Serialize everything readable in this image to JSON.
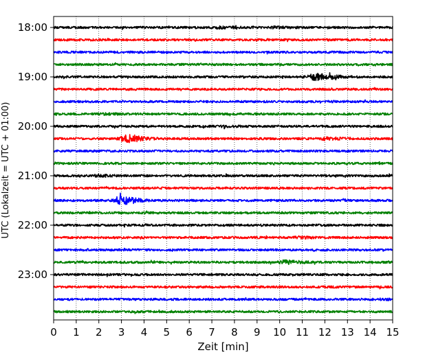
{
  "chart_data": {
    "type": "line",
    "title": "",
    "xlabel": "Zeit  [min]",
    "ylabel": "UTC (Lokalzeit = UTC + 01:00)",
    "xlim": [
      0,
      15
    ],
    "x_ticks": [
      0,
      1,
      2,
      3,
      4,
      5,
      6,
      7,
      8,
      9,
      10,
      11,
      12,
      13,
      14,
      15
    ],
    "y_tick_labels": [
      "18:00",
      "19:00",
      "20:00",
      "21:00",
      "22:00",
      "23:00"
    ],
    "grid": "vertical dotted lines at each minute",
    "color_cycle": [
      "#000000",
      "#ff0000",
      "#0000ff",
      "#008000"
    ],
    "traces": [
      {
        "start": "18:00",
        "color": "#000000",
        "events": [
          {
            "minute": 7.3,
            "amplitude": 1.6
          },
          {
            "minute": 9.8,
            "amplitude": 1.5
          }
        ]
      },
      {
        "start": "18:15",
        "color": "#ff0000",
        "events": []
      },
      {
        "start": "18:30",
        "color": "#0000ff",
        "events": []
      },
      {
        "start": "18:45",
        "color": "#008000",
        "events": []
      },
      {
        "start": "19:00",
        "color": "#000000",
        "events": [
          {
            "minute": 11.5,
            "amplitude": 3.5
          },
          {
            "minute": 12.3,
            "amplitude": 1.5
          }
        ]
      },
      {
        "start": "19:15",
        "color": "#ff0000",
        "events": []
      },
      {
        "start": "19:30",
        "color": "#0000ff",
        "events": []
      },
      {
        "start": "19:45",
        "color": "#008000",
        "events": [
          {
            "minute": 2.3,
            "amplitude": 1.4
          }
        ]
      },
      {
        "start": "20:00",
        "color": "#000000",
        "events": [
          {
            "minute": 7.5,
            "amplitude": 1.3
          }
        ]
      },
      {
        "start": "20:15",
        "color": "#ff0000",
        "events": [
          {
            "minute": 3.2,
            "amplitude": 4.0
          },
          {
            "minute": 12.0,
            "amplitude": 1.8
          }
        ]
      },
      {
        "start": "20:30",
        "color": "#0000ff",
        "events": []
      },
      {
        "start": "20:45",
        "color": "#008000",
        "events": []
      },
      {
        "start": "21:00",
        "color": "#000000",
        "events": [
          {
            "minute": 2.0,
            "amplitude": 1.5
          }
        ]
      },
      {
        "start": "21:15",
        "color": "#ff0000",
        "events": []
      },
      {
        "start": "21:30",
        "color": "#0000ff",
        "events": [
          {
            "minute": 3.0,
            "amplitude": 4.0
          }
        ]
      },
      {
        "start": "21:45",
        "color": "#008000",
        "events": []
      },
      {
        "start": "22:00",
        "color": "#000000",
        "events": []
      },
      {
        "start": "22:15",
        "color": "#ff0000",
        "events": [
          {
            "minute": 10.9,
            "amplitude": 1.6
          }
        ]
      },
      {
        "start": "22:30",
        "color": "#0000ff",
        "events": []
      },
      {
        "start": "22:45",
        "color": "#008000",
        "events": [
          {
            "minute": 10.2,
            "amplitude": 2.2
          }
        ]
      },
      {
        "start": "23:00",
        "color": "#000000",
        "events": []
      },
      {
        "start": "23:15",
        "color": "#ff0000",
        "events": []
      },
      {
        "start": "23:30",
        "color": "#0000ff",
        "events": [
          {
            "minute": 14.3,
            "amplitude": 1.3
          }
        ]
      },
      {
        "start": "23:45",
        "color": "#008000",
        "events": []
      }
    ]
  }
}
